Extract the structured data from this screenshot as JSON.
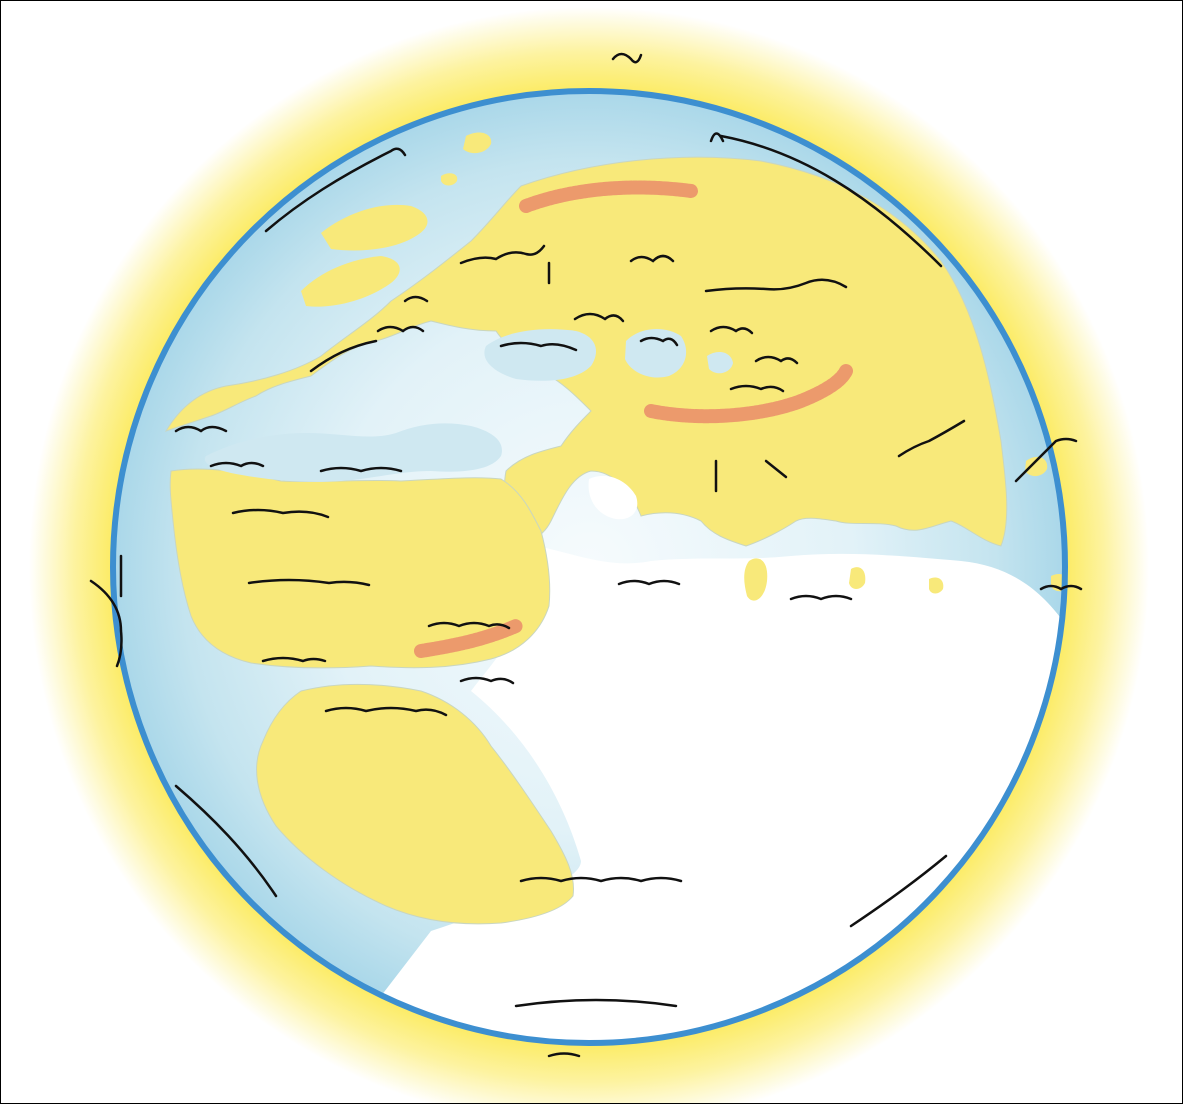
{
  "map": {
    "type": "world-map",
    "style": "circular medieval world map",
    "orientation": "south-up",
    "labels": [],
    "colors": {
      "halo": "#fbe84a",
      "ocean": "#c4e4ef",
      "ocean_rim": "#3d8fd0",
      "land": "#f8e97a",
      "mountains": "#ec9a6c",
      "unexplored": "#ffffff",
      "script_ink": "#111111",
      "frame": "#000000"
    }
  }
}
